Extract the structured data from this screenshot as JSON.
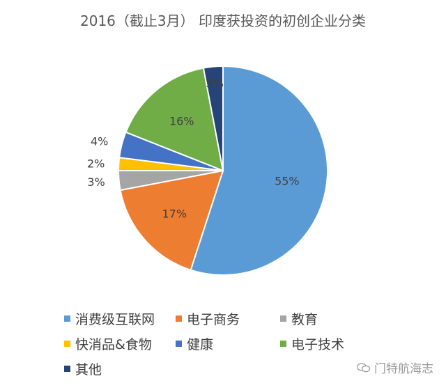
{
  "chart_data": {
    "type": "pie",
    "title": "2016（截止3月） 印度获投资的初创企业分类",
    "slices": [
      {
        "label": "消费级互联网",
        "value": 55,
        "display": "55%",
        "color": "#5B9BD5"
      },
      {
        "label": "电子商务",
        "value": 17,
        "display": "17%",
        "color": "#ED7D31"
      },
      {
        "label": "教育",
        "value": 3,
        "display": "3%",
        "color": "#A5A5A5"
      },
      {
        "label": "快消品&食物",
        "value": 2,
        "display": "2%",
        "color": "#FFC000"
      },
      {
        "label": "健康",
        "value": 4,
        "display": "4%",
        "color": "#4472C4"
      },
      {
        "label": "电子技术",
        "value": 16,
        "display": "16%",
        "color": "#70AD47"
      },
      {
        "label": "其他",
        "value": 3,
        "display": "3%",
        "color": "#264478"
      }
    ],
    "legend_position": "bottom"
  },
  "watermark": {
    "text": "门特航海志",
    "icon": "wechat-icon"
  }
}
